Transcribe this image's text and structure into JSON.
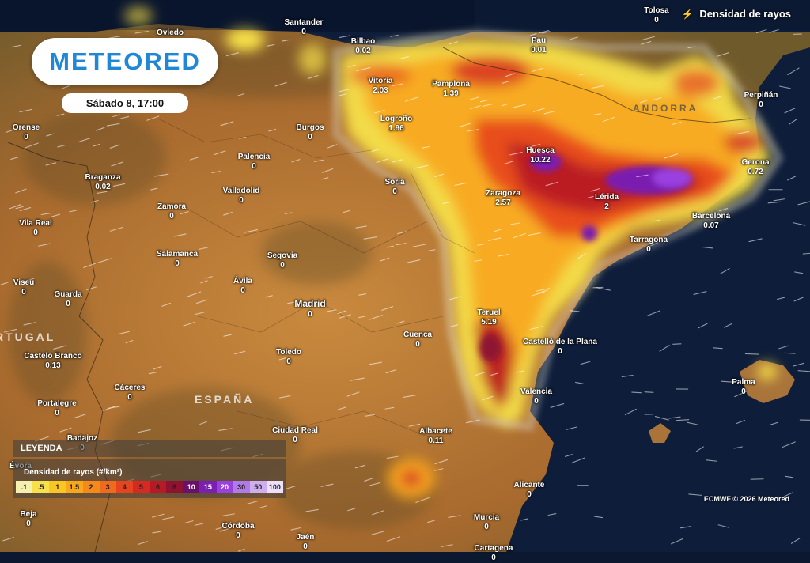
{
  "brand": "METEORED",
  "date_label": "Sábado 8, 17:00",
  "layer_title": "Densidad de rayos",
  "layer_icon": "lightning-icon",
  "country_labels": [
    {
      "text": "ESPAÑA",
      "id": "spain"
    },
    {
      "text": "RTUGAL",
      "id": "portugal"
    },
    {
      "text": "ANDORRA",
      "id": "andorra"
    }
  ],
  "cities": [
    {
      "name": "Tolosa",
      "value": "0"
    },
    {
      "name": "Oviedo",
      "value": ""
    },
    {
      "name": "Santander",
      "value": "0"
    },
    {
      "name": "Bilbao",
      "value": "0.02"
    },
    {
      "name": "Pau",
      "value": "0.01"
    },
    {
      "name": "Vitoria",
      "value": "2.03"
    },
    {
      "name": "Pamplona",
      "value": "1.39"
    },
    {
      "name": "Perpiñán",
      "value": "0"
    },
    {
      "name": "Orense",
      "value": "0"
    },
    {
      "name": "Burgos",
      "value": "0"
    },
    {
      "name": "Logroño",
      "value": "1.96"
    },
    {
      "name": "Huesca",
      "value": "10.22"
    },
    {
      "name": "Gerona",
      "value": "0.72"
    },
    {
      "name": "Palencia",
      "value": "0"
    },
    {
      "name": "Braganza",
      "value": "0.02"
    },
    {
      "name": "Soria",
      "value": "0"
    },
    {
      "name": "Valladolid",
      "value": "0"
    },
    {
      "name": "Zaragoza",
      "value": "2.57"
    },
    {
      "name": "Lérida",
      "value": "2"
    },
    {
      "name": "Zamora",
      "value": "0"
    },
    {
      "name": "Barcelona",
      "value": "0.07"
    },
    {
      "name": "Vila Real",
      "value": "0"
    },
    {
      "name": "Tarragona",
      "value": "0"
    },
    {
      "name": "Salamanca",
      "value": "0"
    },
    {
      "name": "Segovia",
      "value": "0"
    },
    {
      "name": "Viseu",
      "value": "0"
    },
    {
      "name": "Ávila",
      "value": "0"
    },
    {
      "name": "Guarda",
      "value": "0"
    },
    {
      "name": "Madrid",
      "value": "0"
    },
    {
      "name": "Teruel",
      "value": "5.19"
    },
    {
      "name": "Cuenca",
      "value": "0"
    },
    {
      "name": "Castelló de la Plana",
      "value": "0"
    },
    {
      "name": "Castelo Branco",
      "value": "0.13"
    },
    {
      "name": "Toledo",
      "value": "0"
    },
    {
      "name": "Palma",
      "value": "0"
    },
    {
      "name": "Cáceres",
      "value": "0"
    },
    {
      "name": "Valencia",
      "value": "0"
    },
    {
      "name": "Portalegre",
      "value": "0"
    },
    {
      "name": "Ciudad Real",
      "value": "0"
    },
    {
      "name": "Albacete",
      "value": "0.11"
    },
    {
      "name": "Badajoz",
      "value": "0"
    },
    {
      "name": "Évora",
      "value": ""
    },
    {
      "name": "Alicante",
      "value": "0"
    },
    {
      "name": "Beja",
      "value": "0"
    },
    {
      "name": "Murcia",
      "value": "0"
    },
    {
      "name": "Córdoba",
      "value": "0"
    },
    {
      "name": "Jaén",
      "value": "0"
    },
    {
      "name": "Cartagena",
      "value": "0"
    }
  ],
  "legend": {
    "header": "LEYENDA",
    "title": "Densidad de rayos (#/km²)",
    "steps": [
      {
        "label": ".1",
        "color": "#f5f0b0"
      },
      {
        "label": ".5",
        "color": "#f7e04a"
      },
      {
        "label": "1",
        "color": "#f9c623"
      },
      {
        "label": "1.5",
        "color": "#f8a61c"
      },
      {
        "label": "2",
        "color": "#f58a1b"
      },
      {
        "label": "3",
        "color": "#ef6a1c"
      },
      {
        "label": "4",
        "color": "#e5441f"
      },
      {
        "label": "5",
        "color": "#d42a22"
      },
      {
        "label": "6",
        "color": "#b81a25"
      },
      {
        "label": "8",
        "color": "#8f1230"
      },
      {
        "label": "10",
        "color": "#6a0f6a"
      },
      {
        "label": "15",
        "color": "#7a1fb0"
      },
      {
        "label": "20",
        "color": "#9a3fe0"
      },
      {
        "label": "30",
        "color": "#b27ae8"
      },
      {
        "label": "50",
        "color": "#cfaef0"
      },
      {
        "label": "100",
        "color": "#ece0fa"
      }
    ]
  },
  "credit": "ECMWF © 2026 Meteored"
}
